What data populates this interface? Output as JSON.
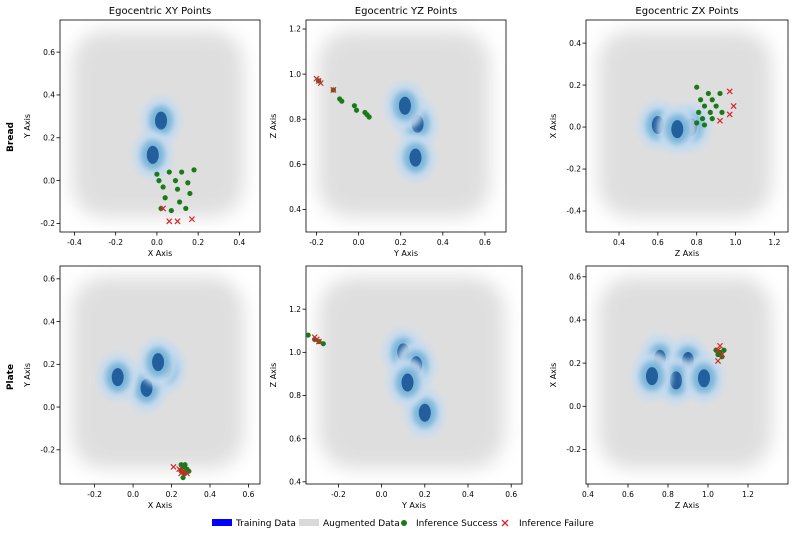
{
  "rows": [
    "Bread",
    "Plate"
  ],
  "legend": {
    "training": "Training Data",
    "augmented": "Augmented Data",
    "success": "Inference Success",
    "failure": "Inference Failure",
    "placement": "bottom-center"
  },
  "colors": {
    "training": "#1f5a9a",
    "augmented": "#d9d9d9",
    "success": "#1a7a1a",
    "failure": "#d62728",
    "legend_training": "#0000ff"
  },
  "chart_data": [
    {
      "type": "scatter",
      "title": "Egocentric XY Points",
      "xlabel": "X Axis",
      "ylabel": "Y Axis",
      "row_label": "Bread",
      "xlim": [
        -0.47,
        0.5
      ],
      "ylim": [
        -0.24,
        0.75
      ],
      "xticks": [
        -0.4,
        -0.2,
        0.0,
        0.2,
        0.4
      ],
      "yticks": [
        -0.2,
        0.0,
        0.2,
        0.4,
        0.6
      ],
      "tick_decimals": 1,
      "density_peaks": [
        [
          0.02,
          0.28
        ],
        [
          -0.02,
          0.12
        ]
      ],
      "success": [
        [
          0.0,
          0.03
        ],
        [
          0.06,
          0.04
        ],
        [
          0.12,
          0.04
        ],
        [
          0.18,
          0.05
        ],
        [
          0.01,
          0.0
        ],
        [
          0.09,
          0.0
        ],
        [
          0.15,
          -0.01
        ],
        [
          0.03,
          -0.03
        ],
        [
          0.1,
          -0.04
        ],
        [
          0.16,
          -0.06
        ],
        [
          0.04,
          -0.08
        ],
        [
          0.11,
          -0.1
        ],
        [
          0.02,
          -0.13
        ],
        [
          0.07,
          -0.14
        ],
        [
          0.14,
          -0.13
        ]
      ],
      "failure": [
        [
          0.03,
          -0.13
        ],
        [
          0.06,
          -0.19
        ],
        [
          0.1,
          -0.19
        ],
        [
          0.17,
          -0.18
        ]
      ]
    },
    {
      "type": "scatter",
      "title": "Egocentric YZ Points",
      "xlabel": "Y Axis",
      "ylabel": "Z Axis",
      "row_label": "Bread",
      "xlim": [
        -0.25,
        0.7
      ],
      "ylim": [
        0.3,
        1.24
      ],
      "xticks": [
        -0.2,
        0.0,
        0.2,
        0.4,
        0.6
      ],
      "yticks": [
        0.4,
        0.6,
        0.8,
        1.0,
        1.2
      ],
      "tick_decimals": 1,
      "density_peaks": [
        [
          0.28,
          0.78
        ],
        [
          0.27,
          0.63
        ],
        [
          0.22,
          0.86
        ]
      ],
      "success": [
        [
          -0.19,
          0.97
        ],
        [
          -0.12,
          0.93
        ],
        [
          -0.09,
          0.89
        ],
        [
          -0.08,
          0.88
        ],
        [
          -0.02,
          0.86
        ],
        [
          -0.01,
          0.84
        ],
        [
          0.03,
          0.83
        ],
        [
          0.04,
          0.82
        ],
        [
          0.05,
          0.81
        ]
      ],
      "failure": [
        [
          -0.2,
          0.98
        ],
        [
          -0.19,
          0.97
        ],
        [
          -0.18,
          0.96
        ],
        [
          -0.12,
          0.93
        ]
      ]
    },
    {
      "type": "scatter",
      "title": "Egocentric ZX Points",
      "xlabel": "Z Axis",
      "ylabel": "X Axis",
      "row_label": "Bread",
      "xlim": [
        0.23,
        1.27
      ],
      "ylim": [
        -0.5,
        0.51
      ],
      "xticks": [
        0.4,
        0.6,
        0.8,
        1.0,
        1.2
      ],
      "yticks": [
        -0.4,
        -0.2,
        0.0,
        0.2,
        0.4
      ],
      "tick_decimals": 1,
      "density_peaks": [
        [
          0.6,
          0.01
        ],
        [
          0.77,
          0.0
        ],
        [
          0.7,
          -0.01
        ]
      ],
      "success": [
        [
          0.8,
          0.19
        ],
        [
          0.86,
          0.16
        ],
        [
          0.92,
          0.16
        ],
        [
          0.82,
          0.13
        ],
        [
          0.88,
          0.13
        ],
        [
          0.84,
          0.1
        ],
        [
          0.9,
          0.1
        ],
        [
          0.81,
          0.07
        ],
        [
          0.87,
          0.07
        ],
        [
          0.93,
          0.07
        ],
        [
          0.83,
          0.04
        ],
        [
          0.88,
          0.04
        ],
        [
          0.8,
          0.02
        ],
        [
          0.84,
          0.01
        ]
      ],
      "failure": [
        [
          0.97,
          0.17
        ],
        [
          0.99,
          0.1
        ],
        [
          0.97,
          0.06
        ],
        [
          0.92,
          0.03
        ]
      ]
    },
    {
      "type": "scatter",
      "title": "",
      "xlabel": "X Axis",
      "ylabel": "Y Axis",
      "row_label": "Plate",
      "xlim": [
        -0.38,
        0.66
      ],
      "ylim": [
        -0.36,
        0.66
      ],
      "xticks": [
        -0.2,
        0.0,
        0.2,
        0.4,
        0.6
      ],
      "yticks": [
        -0.2,
        0.0,
        0.2,
        0.4,
        0.6
      ],
      "tick_decimals": 1,
      "density_peaks": [
        [
          0.17,
          0.18
        ],
        [
          0.07,
          0.09
        ],
        [
          0.13,
          0.21
        ],
        [
          -0.08,
          0.14
        ]
      ],
      "success": [
        [
          0.25,
          -0.27
        ],
        [
          0.27,
          -0.27
        ],
        [
          0.26,
          -0.28
        ],
        [
          0.28,
          -0.29
        ],
        [
          0.25,
          -0.3
        ],
        [
          0.27,
          -0.31
        ],
        [
          0.29,
          -0.3
        ],
        [
          0.26,
          -0.33
        ]
      ],
      "failure": [
        [
          0.21,
          -0.28
        ],
        [
          0.24,
          -0.29
        ],
        [
          0.26,
          -0.3
        ],
        [
          0.28,
          -0.31
        ],
        [
          0.25,
          -0.31
        ]
      ]
    },
    {
      "type": "scatter",
      "title": "",
      "xlabel": "Y Axis",
      "ylabel": "Z Axis",
      "row_label": "Plate",
      "xlim": [
        -0.35,
        0.65
      ],
      "ylim": [
        0.39,
        1.4
      ],
      "xticks": [
        -0.2,
        0.0,
        0.2,
        0.4,
        0.6
      ],
      "yticks": [
        0.4,
        0.6,
        0.8,
        1.0,
        1.2
      ],
      "tick_decimals": 1,
      "density_peaks": [
        [
          0.1,
          1.0
        ],
        [
          0.16,
          0.94
        ],
        [
          0.2,
          0.72
        ],
        [
          0.12,
          0.86
        ]
      ],
      "success": [
        [
          -0.34,
          1.08
        ],
        [
          -0.31,
          1.06
        ],
        [
          -0.29,
          1.05
        ],
        [
          -0.27,
          1.04
        ]
      ],
      "failure": [
        [
          -0.31,
          1.07
        ],
        [
          -0.3,
          1.06
        ],
        [
          -0.29,
          1.05
        ]
      ]
    },
    {
      "type": "scatter",
      "title": "",
      "xlabel": "Z Axis",
      "ylabel": "X Axis",
      "row_label": "Plate",
      "xlim": [
        0.39,
        1.4
      ],
      "ylim": [
        -0.36,
        0.65
      ],
      "xticks": [
        0.4,
        0.6,
        0.8,
        1.0,
        1.2
      ],
      "yticks": [
        -0.2,
        0.0,
        0.2,
        0.4,
        0.6
      ],
      "tick_decimals": 1,
      "density_peaks": [
        [
          0.76,
          0.22
        ],
        [
          0.9,
          0.21
        ],
        [
          0.84,
          0.12
        ],
        [
          0.98,
          0.13
        ],
        [
          0.72,
          0.14
        ]
      ],
      "success": [
        [
          1.04,
          0.26
        ],
        [
          1.06,
          0.25
        ],
        [
          1.08,
          0.26
        ],
        [
          1.05,
          0.24
        ],
        [
          1.07,
          0.23
        ]
      ],
      "failure": [
        [
          1.05,
          0.26
        ],
        [
          1.06,
          0.28
        ],
        [
          1.07,
          0.24
        ],
        [
          1.05,
          0.21
        ]
      ]
    }
  ]
}
